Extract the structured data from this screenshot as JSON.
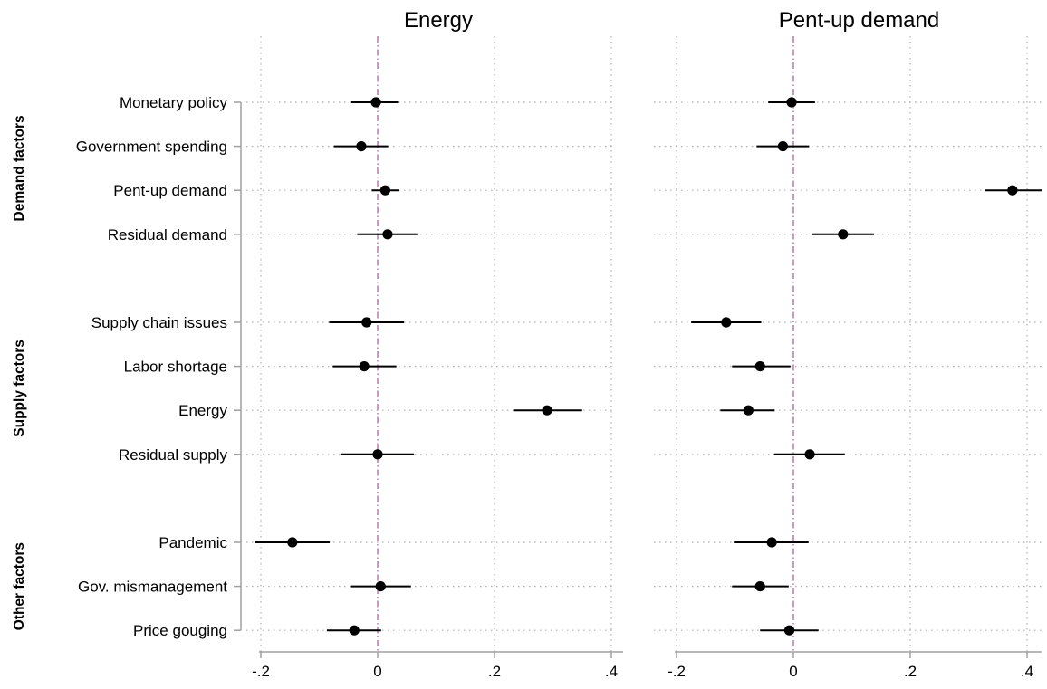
{
  "chart_data": {
    "type": "coefficient_plot",
    "rows": [
      "Monetary policy",
      "Government spending",
      "Pent-up demand",
      "Residual demand",
      "Supply chain issues",
      "Labor shortage",
      "Energy",
      "Residual supply",
      "Pandemic",
      "Gov. mismanagement",
      "Price gouging"
    ],
    "groups": [
      {
        "label": "Demand factors",
        "rows": [
          0,
          1,
          2,
          3
        ]
      },
      {
        "label": "Supply factors",
        "rows": [
          4,
          5,
          6,
          7
        ]
      },
      {
        "label": "Other factors",
        "rows": [
          8,
          9,
          10
        ]
      }
    ],
    "xlim": [
      -0.2,
      0.42
    ],
    "ticks": [
      -0.2,
      0,
      0.2,
      0.4
    ],
    "tick_labels": [
      "-.2",
      "0",
      ".2",
      ".4"
    ],
    "reference_line": 0,
    "grid": true,
    "panels": [
      {
        "title": "Energy",
        "estimates": [
          -0.003,
          -0.028,
          0.013,
          0.017,
          -0.019,
          -0.023,
          0.29,
          0.0,
          -0.146,
          0.005,
          -0.04
        ],
        "ci_low": [
          -0.045,
          -0.075,
          -0.01,
          -0.035,
          -0.083,
          -0.077,
          0.232,
          -0.062,
          -0.21,
          -0.047,
          -0.087
        ],
        "ci_high": [
          0.035,
          0.018,
          0.037,
          0.068,
          0.045,
          0.032,
          0.35,
          0.062,
          -0.082,
          0.057,
          0.006
        ]
      },
      {
        "title": "Pent-up demand",
        "estimates": [
          -0.003,
          -0.018,
          0.375,
          0.085,
          -0.115,
          -0.057,
          -0.077,
          0.028,
          -0.037,
          -0.057,
          -0.007
        ],
        "ci_low": [
          -0.043,
          -0.063,
          0.328,
          0.032,
          -0.175,
          -0.105,
          -0.125,
          -0.033,
          -0.102,
          -0.105,
          -0.057
        ],
        "ci_high": [
          0.037,
          0.027,
          0.425,
          0.138,
          -0.055,
          -0.005,
          -0.032,
          0.088,
          0.026,
          -0.008,
          0.043
        ]
      }
    ]
  },
  "colors": {
    "marker": "#000000",
    "ci_line": "#000000",
    "reference_line": "#b0649e",
    "grid": "#b0b0b0",
    "axis": "#a0a0a0"
  }
}
